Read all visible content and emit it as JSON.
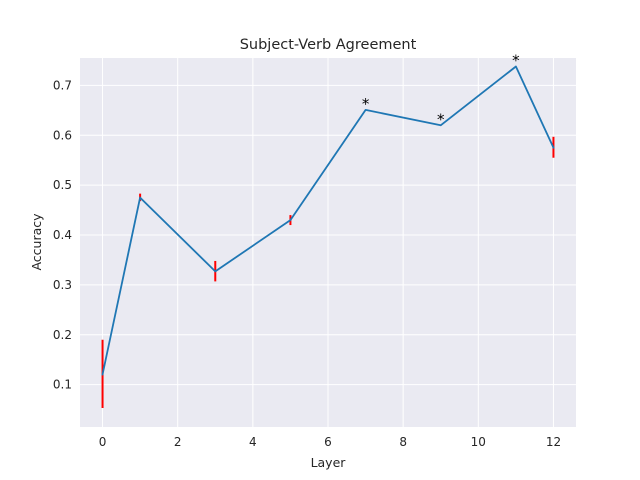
{
  "chart_data": {
    "type": "line",
    "title": "Subject-Verb Agreement",
    "xlabel": "Layer",
    "ylabel": "Accuracy",
    "xlim": [
      -0.6,
      12.6
    ],
    "ylim": [
      0.015,
      0.755
    ],
    "xticks": [
      0,
      2,
      4,
      6,
      8,
      10,
      12
    ],
    "yticks": [
      0.1,
      0.2,
      0.3,
      0.4,
      0.5,
      0.6,
      0.7
    ],
    "grid": true,
    "series": [
      {
        "x": [
          0,
          1,
          3,
          5,
          7,
          9,
          11,
          12
        ],
        "values": [
          0.12,
          0.475,
          0.327,
          0.43,
          0.651,
          0.62,
          0.738,
          0.575
        ]
      }
    ],
    "error_bars": [
      {
        "x": 0,
        "low": 0.053,
        "high": 0.19
      },
      {
        "x": 1,
        "low": 0.468,
        "high": 0.483
      },
      {
        "x": 3,
        "low": 0.307,
        "high": 0.348
      },
      {
        "x": 5,
        "low": 0.42,
        "high": 0.44
      },
      {
        "x": 12,
        "low": 0.555,
        "high": 0.597
      }
    ],
    "annotations": [
      {
        "x": 7,
        "y": 0.651,
        "text": "*"
      },
      {
        "x": 9,
        "y": 0.62,
        "text": "*"
      },
      {
        "x": 11,
        "y": 0.738,
        "text": "*"
      }
    ],
    "colors": {
      "line": "#1f77b4",
      "error": "#ff0000",
      "background": "#eaeaf2",
      "grid": "#ffffff"
    }
  }
}
